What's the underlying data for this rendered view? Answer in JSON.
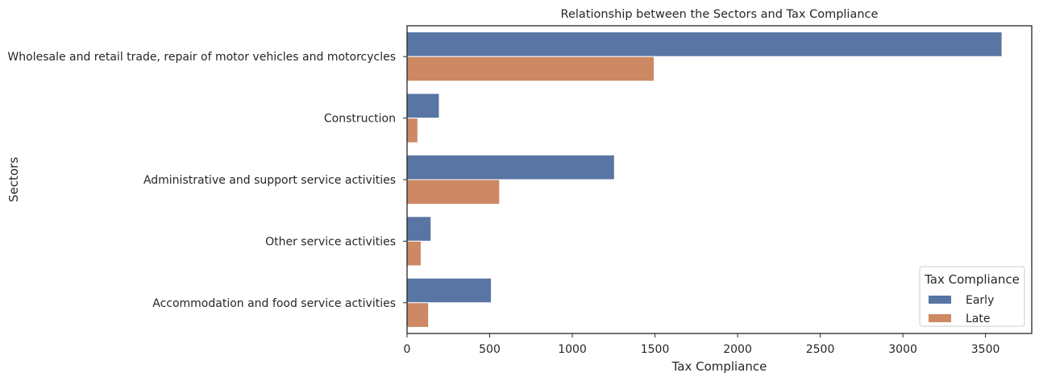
{
  "chart_data": {
    "type": "bar",
    "orientation": "horizontal",
    "title": "Relationship between the Sectors and Tax Compliance",
    "xlabel": "Tax Compliance",
    "ylabel": "Sectors",
    "xlim": [
      0,
      3780
    ],
    "xticks": [
      0,
      500,
      1000,
      1500,
      2000,
      2500,
      3000,
      3500
    ],
    "grid": false,
    "legend": {
      "title": "Tax Compliance",
      "placement": "bottom-right"
    },
    "categories": [
      "Wholesale and retail trade, repair of motor vehicles and motorcycles",
      "Construction",
      "Administrative and support service activities",
      "Other service activities",
      "Accommodation and food service activities"
    ],
    "series": [
      {
        "name": "Early",
        "color": "#5875a4",
        "values": [
          3600,
          195,
          1255,
          145,
          510
        ]
      },
      {
        "name": "Late",
        "color": "#cc8963",
        "values": [
          1495,
          65,
          560,
          85,
          130
        ]
      }
    ]
  }
}
